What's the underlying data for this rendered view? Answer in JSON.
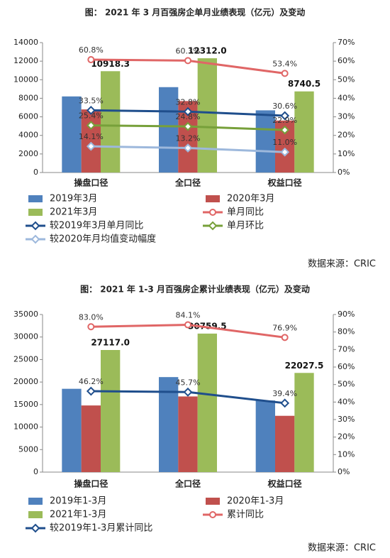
{
  "chart_data": [
    {
      "type": "bar",
      "title": "图：  2021 年 3 月百强房企单月业绩表现（亿元）及变动",
      "source": "数据来源：CRIC",
      "categories": [
        "操盘口径",
        "全口径",
        "权益口径"
      ],
      "ylim": [
        0,
        14000
      ],
      "yticks": [
        0,
        2000,
        4000,
        6000,
        8000,
        10000,
        12000,
        14000
      ],
      "y2lim": [
        0,
        70
      ],
      "y2ticks": [
        {
          "value": 0,
          "label": "0%"
        },
        {
          "value": 10,
          "label": "10%"
        },
        {
          "value": 20,
          "label": "20%"
        },
        {
          "value": 30,
          "label": "30%"
        },
        {
          "value": 40,
          "label": "40%"
        },
        {
          "value": 50,
          "label": "50%"
        },
        {
          "value": 60,
          "label": "60%"
        },
        {
          "value": 70,
          "label": "70%"
        }
      ],
      "series": [
        {
          "name": "2019年3月",
          "type": "bar",
          "color": "#4f81bd",
          "values": [
            8200,
            9200,
            6700
          ]
        },
        {
          "name": "2020年3月",
          "type": "bar",
          "color": "#c0504d",
          "values": [
            6800,
            7700,
            5600
          ]
        },
        {
          "name": "2021年3月",
          "type": "bar",
          "color": "#9bbb59",
          "values": [
            10918.3,
            12312.0,
            8740.5
          ],
          "value_labels": [
            "10918.3",
            "12312.0",
            "8740.5"
          ]
        },
        {
          "name": "单月同比",
          "type": "line",
          "axis": "y2",
          "marker": "circle",
          "color": "#e06666",
          "values": [
            60.8,
            60.3,
            53.4
          ],
          "value_labels": [
            "60.8%",
            "60.3%",
            "53.4%"
          ]
        },
        {
          "name": "较2019年3月单月同比",
          "type": "line",
          "axis": "y2",
          "marker": "diamond",
          "color": "#1f4e8c",
          "values": [
            33.5,
            32.8,
            30.6
          ],
          "value_labels": [
            "33.5%",
            "32.8%",
            "30.6%"
          ]
        },
        {
          "name": "单月环比",
          "type": "line",
          "axis": "y2",
          "marker": "diamond",
          "color": "#77a03a",
          "values": [
            25.4,
            24.8,
            22.9
          ],
          "value_labels": [
            "25.4%",
            "24.8%",
            "22.9%"
          ]
        },
        {
          "name": "较2020年月均值变动幅度",
          "type": "line",
          "axis": "y2",
          "marker": "diamond",
          "color": "#9db8dc",
          "values": [
            14.1,
            13.2,
            11.0
          ],
          "value_labels": [
            "14.1%",
            "13.2%",
            "11.0%"
          ]
        }
      ]
    },
    {
      "type": "bar",
      "title": "图：  2021 年 1-3 月百强房企累计业绩表现（亿元）及变动",
      "source": "数据来源：CRIC",
      "categories": [
        "操盘口径",
        "全口径",
        "权益口径"
      ],
      "ylim": [
        0,
        35000
      ],
      "yticks": [
        0,
        5000,
        10000,
        15000,
        20000,
        25000,
        30000,
        35000
      ],
      "y2lim": [
        0,
        90
      ],
      "y2ticks": [
        {
          "value": 0,
          "label": "0%"
        },
        {
          "value": 10,
          "label": "10%"
        },
        {
          "value": 20,
          "label": "20%"
        },
        {
          "value": 30,
          "label": "30%"
        },
        {
          "value": 40,
          "label": "40%"
        },
        {
          "value": 50,
          "label": "50%"
        },
        {
          "value": 60,
          "label": "60%"
        },
        {
          "value": 70,
          "label": "70%"
        },
        {
          "value": 80,
          "label": "80%"
        },
        {
          "value": 90,
          "label": "90%"
        }
      ],
      "series": [
        {
          "name": "2019年1-3月",
          "type": "bar",
          "color": "#4f81bd",
          "values": [
            18500,
            21100,
            15900
          ]
        },
        {
          "name": "2020年1-3月",
          "type": "bar",
          "color": "#c0504d",
          "values": [
            14800,
            16800,
            12500
          ]
        },
        {
          "name": "2021年1-3月",
          "type": "bar",
          "color": "#9bbb59",
          "values": [
            27117.0,
            30759.5,
            22027.5
          ],
          "value_labels": [
            "27117.0",
            "30759.5",
            "22027.5"
          ]
        },
        {
          "name": "累计同比",
          "type": "line",
          "axis": "y2",
          "marker": "circle",
          "color": "#e06666",
          "values": [
            83.0,
            84.1,
            76.9
          ],
          "value_labels": [
            "83.0%",
            "84.1%",
            "76.9%"
          ]
        },
        {
          "name": "较2019年1-3月累计同比",
          "type": "line",
          "axis": "y2",
          "marker": "diamond",
          "color": "#1f4e8c",
          "values": [
            46.2,
            45.7,
            39.4
          ],
          "value_labels": [
            "46.2%",
            "45.7%",
            "39.4%"
          ]
        }
      ]
    }
  ]
}
